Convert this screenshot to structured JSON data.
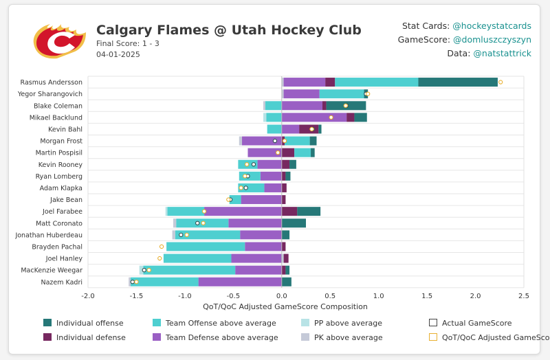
{
  "header": {
    "title": "Calgary Flames @ Utah Hockey Club",
    "final_score": "Final Score: 1 - 3",
    "date": "04-01-2025"
  },
  "credits": [
    {
      "label": "Stat Cards:",
      "value": "@hockeystatcards"
    },
    {
      "label": "GameScore:",
      "value": "@domluszczyszyn"
    },
    {
      "label": "Data:",
      "value": "@natstattrick"
    }
  ],
  "colors": {
    "individual_offense": "#267878",
    "team_offense": "#4ecfd0",
    "pp": "#b8e3e6",
    "individual_defense": "#772860",
    "team_defense": "#9a5fc4",
    "pk": "#c5cad8",
    "actual_marker": "#2f4f4f",
    "adjusted_marker": "#e8b030",
    "logo_red": "#d2152b",
    "logo_gold": "#f1be48"
  },
  "chart_data": {
    "type": "bar",
    "orientation": "horizontal",
    "stacked": true,
    "xlabel": "QoT/QoC Adjusted GameScore Composition",
    "xlim": [
      -2.0,
      2.5
    ],
    "xticks": [
      "-2.0",
      "-1.5",
      "-1.0",
      "-0.5",
      "0.0",
      "0.5",
      "1.0",
      "1.5",
      "2.0",
      "2.5"
    ],
    "grid": "horizontal",
    "legend_position": "bottom",
    "legend": [
      {
        "key": "individual_offense",
        "label": "Individual offense",
        "style": "fill"
      },
      {
        "key": "team_offense",
        "label": "Team Offense above average",
        "style": "fill"
      },
      {
        "key": "pp",
        "label": "PP above average",
        "style": "fill"
      },
      {
        "key": "actual",
        "label": "Actual GameScore",
        "style": "outline"
      },
      {
        "key": "individual_defense",
        "label": "Individual defense",
        "style": "fill"
      },
      {
        "key": "team_defense",
        "label": "Team Defense above average",
        "style": "fill"
      },
      {
        "key": "pk",
        "label": "PK above average",
        "style": "fill"
      },
      {
        "key": "adjusted",
        "label": "QoT/QoC Adjusted GameScore",
        "style": "outline-gold"
      }
    ],
    "players": [
      {
        "name": "Rasmus Andersson",
        "ind_off": 0.82,
        "team_off": 0.86,
        "pp": 0.0,
        "ind_def": 0.1,
        "team_def": 0.43,
        "pk": 0.02,
        "neg_team_off": 0.0,
        "neg_team_def": 0.0,
        "neg_pp": 0.0,
        "neg_pk": 0.0,
        "actual": null,
        "adjusted": 2.26
      },
      {
        "name": "Yegor Sharangovich",
        "ind_off": 0.04,
        "team_off": 0.46,
        "pp": 0.0,
        "ind_def": 0.0,
        "team_def": 0.37,
        "pk": 0.02,
        "neg_team_off": 0.0,
        "neg_team_def": 0.0,
        "neg_pp": 0.0,
        "neg_pk": 0.0,
        "actual": 0.87,
        "adjusted": 0.89
      },
      {
        "name": "Blake Coleman",
        "ind_off": 0.41,
        "team_off": 0.0,
        "pp": 0.0,
        "ind_def": 0.04,
        "team_def": 0.42,
        "pk": 0.0,
        "neg_team_off": 0.17,
        "neg_team_def": 0.0,
        "neg_pp": 0.0,
        "neg_pk": 0.02,
        "actual": 0.67,
        "adjusted": 0.66
      },
      {
        "name": "Mikael Backlund",
        "ind_off": 0.13,
        "team_off": 0.0,
        "pp": 0.0,
        "ind_def": 0.08,
        "team_def": 0.67,
        "pk": 0.0,
        "neg_team_off": 0.16,
        "neg_team_def": 0.0,
        "neg_pp": 0.03,
        "neg_pk": 0.0,
        "actual": 0.51,
        "adjusted": 0.51
      },
      {
        "name": "Kevin Bahl",
        "ind_off": 0.03,
        "team_off": 0.0,
        "pp": 0.0,
        "ind_def": 0.2,
        "team_def": 0.18,
        "pk": 0.0,
        "neg_team_off": 0.15,
        "neg_team_def": 0.0,
        "neg_pp": 0.0,
        "neg_pk": 0.0,
        "actual": 0.32,
        "adjusted": 0.31
      },
      {
        "name": "Morgan Frost",
        "ind_off": 0.07,
        "team_off": 0.26,
        "pp": 0.0,
        "ind_def": 0.03,
        "team_def": 0.0,
        "pk": 0.0,
        "neg_team_off": 0.0,
        "neg_team_def": 0.41,
        "neg_pp": 0.0,
        "neg_pk": 0.03,
        "actual": -0.07,
        "adjusted": 0.03
      },
      {
        "name": "Martin Pospisil",
        "ind_off": 0.04,
        "team_off": 0.17,
        "pp": 0.0,
        "ind_def": 0.13,
        "team_def": 0.0,
        "pk": 0.0,
        "neg_team_off": 0.0,
        "neg_team_def": 0.35,
        "neg_pp": 0.0,
        "neg_pk": 0.0,
        "actual": null,
        "adjusted": -0.04
      },
      {
        "name": "Kevin Rooney",
        "ind_off": 0.07,
        "team_off": 0.0,
        "pp": 0.0,
        "ind_def": 0.08,
        "team_def": 0.0,
        "pk": 0.0,
        "neg_team_off": 0.2,
        "neg_team_def": 0.25,
        "neg_pp": 0.0,
        "neg_pk": 0.0,
        "actual": -0.29,
        "adjusted": -0.36
      },
      {
        "name": "Ryan Lomberg",
        "ind_off": 0.05,
        "team_off": 0.0,
        "pp": 0.0,
        "ind_def": 0.04,
        "team_def": 0.0,
        "pk": 0.0,
        "neg_team_off": 0.22,
        "neg_team_def": 0.22,
        "neg_pp": 0.0,
        "neg_pk": 0.0,
        "actual": -0.35,
        "adjusted": -0.38
      },
      {
        "name": "Adam Klapka",
        "ind_off": 0.0,
        "team_off": 0.0,
        "pp": 0.0,
        "ind_def": 0.05,
        "team_def": 0.0,
        "pk": 0.0,
        "neg_team_off": 0.27,
        "neg_team_def": 0.18,
        "neg_pp": 0.0,
        "neg_pk": 0.0,
        "actual": -0.37,
        "adjusted": -0.42
      },
      {
        "name": "Jake Bean",
        "ind_off": 0.0,
        "team_off": 0.0,
        "pp": 0.0,
        "ind_def": 0.04,
        "team_def": 0.0,
        "pk": 0.0,
        "neg_team_off": 0.12,
        "neg_team_def": 0.42,
        "neg_pp": 0.0,
        "neg_pk": 0.0,
        "actual": -0.53,
        "adjusted": -0.55
      },
      {
        "name": "Joel Farabee",
        "ind_off": 0.24,
        "team_off": 0.0,
        "pp": 0.0,
        "ind_def": 0.16,
        "team_def": 0.0,
        "pk": 0.0,
        "neg_team_off": 0.38,
        "neg_team_def": 0.8,
        "neg_pp": 0.02,
        "neg_pk": 0.0,
        "actual": null,
        "adjusted": -0.8
      },
      {
        "name": "Matt Coronato",
        "ind_off": 0.25,
        "team_off": 0.0,
        "pp": 0.0,
        "ind_def": 0.0,
        "team_def": 0.0,
        "pk": 0.0,
        "neg_team_off": 0.54,
        "neg_team_def": 0.55,
        "neg_pp": 0.0,
        "neg_pk": 0.03,
        "actual": -0.87,
        "adjusted": -0.81
      },
      {
        "name": "Jonathan Huberdeau",
        "ind_off": 0.08,
        "team_off": 0.0,
        "pp": 0.0,
        "ind_def": 0.0,
        "team_def": 0.0,
        "pk": 0.0,
        "neg_team_off": 0.67,
        "neg_team_def": 0.43,
        "neg_pp": 0.0,
        "neg_pk": 0.03,
        "actual": -1.04,
        "adjusted": -0.98
      },
      {
        "name": "Brayden Pachal",
        "ind_off": 0.0,
        "team_off": 0.0,
        "pp": 0.0,
        "ind_def": 0.04,
        "team_def": 0.0,
        "pk": 0.0,
        "neg_team_off": 0.81,
        "neg_team_def": 0.38,
        "neg_pp": 0.0,
        "neg_pk": 0.0,
        "actual": null,
        "adjusted": -1.24
      },
      {
        "name": "Joel Hanley",
        "ind_off": 0.0,
        "team_off": 0.0,
        "pp": 0.0,
        "ind_def": 0.05,
        "team_def": 0.0,
        "pk": 0.02,
        "neg_team_off": 0.7,
        "neg_team_def": 0.52,
        "neg_pp": 0.0,
        "neg_pk": 0.0,
        "actual": null,
        "adjusted": -1.26
      },
      {
        "name": "MacKenzie Weegar",
        "ind_off": 0.04,
        "team_off": 0.0,
        "pp": 0.0,
        "ind_def": 0.04,
        "team_def": 0.0,
        "pk": 0.0,
        "neg_team_off": 0.95,
        "neg_team_def": 0.48,
        "neg_pp": 0.04,
        "neg_pk": 0.0,
        "actual": -1.42,
        "adjusted": -1.37
      },
      {
        "name": "Nazem Kadri",
        "ind_off": 0.1,
        "team_off": 0.0,
        "pp": 0.0,
        "ind_def": 0.0,
        "team_def": 0.0,
        "pk": 0.0,
        "neg_team_off": 0.7,
        "neg_team_def": 0.86,
        "neg_pp": 0.0,
        "neg_pk": 0.02,
        "actual": -1.54,
        "adjusted": -1.5
      }
    ]
  }
}
